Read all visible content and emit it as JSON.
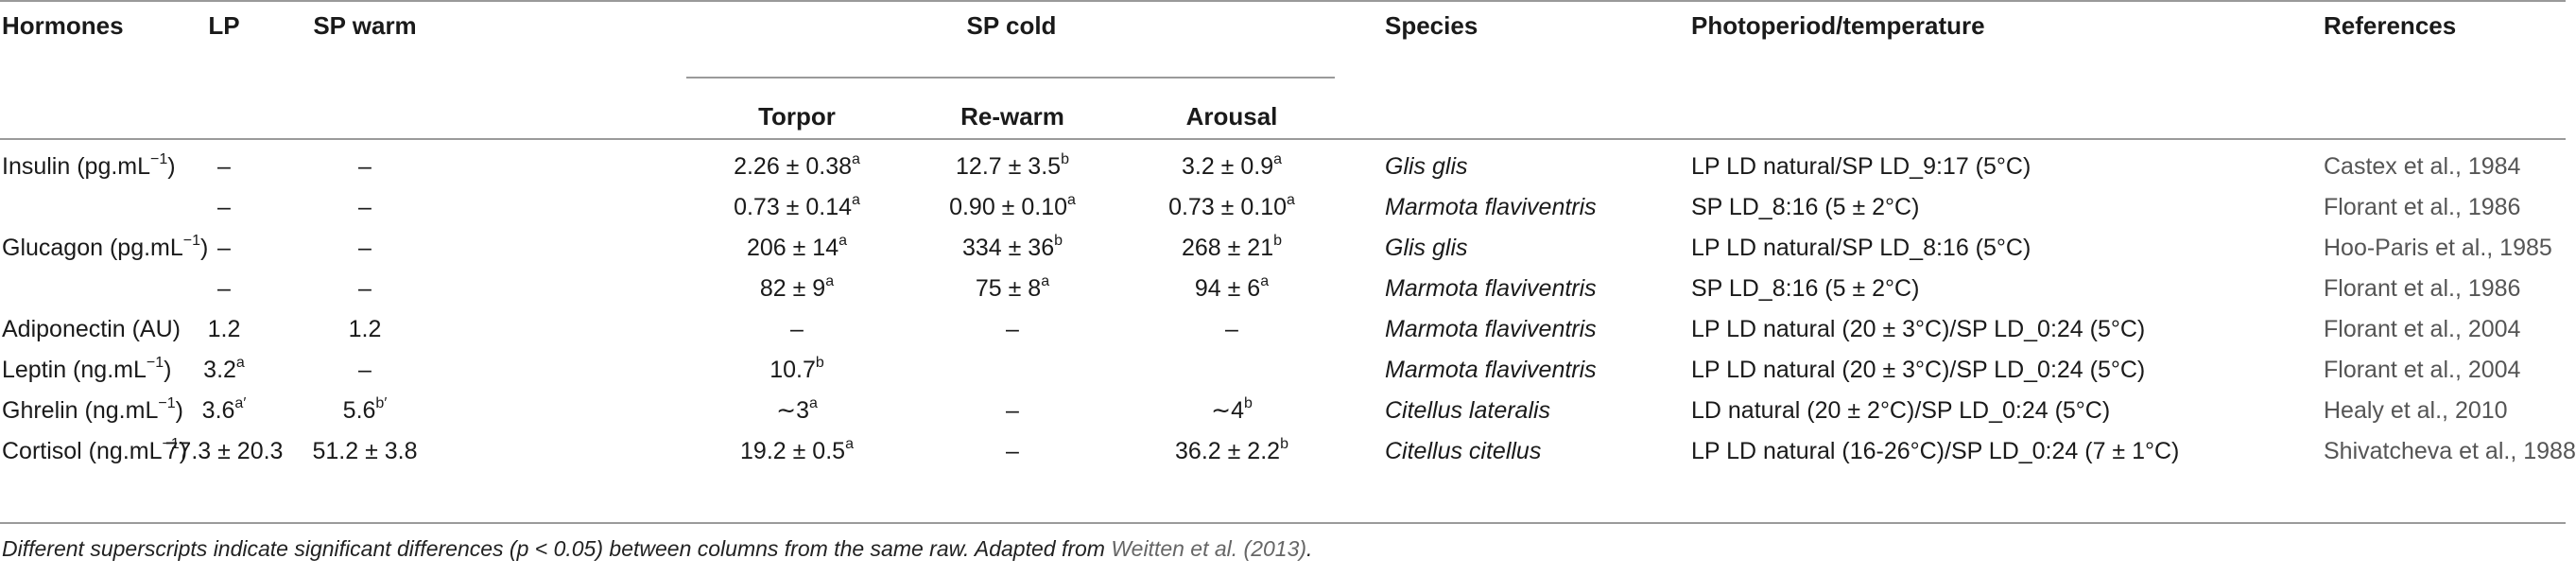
{
  "headers": {
    "hormones": "Hormones",
    "lp": "LP",
    "sp_warm": "SP warm",
    "sp_cold": "SP cold",
    "torpor": "Torpor",
    "rewarm": "Re-warm",
    "arousal": "Arousal",
    "species": "Species",
    "photoperiod": "Photoperiod/temperature",
    "references": "References"
  },
  "rows": [
    {
      "hormone": "Insulin (pg.mL",
      "hormone_sup": "−1",
      "hormone_tail": ")",
      "lp": "–",
      "lp_sup": "",
      "spw": "–",
      "spw_sup": "",
      "torpor": "2.26 ± 0.38",
      "torpor_sup": "a",
      "rewarm": "12.7 ± 3.5",
      "rewarm_sup": "b",
      "arousal": "3.2 ± 0.9",
      "arousal_sup": "a",
      "species": "Glis glis",
      "photo": "LP LD natural/SP LD_9:17 (5°C)",
      "ref": "Castex et al., 1984"
    },
    {
      "hormone": "",
      "hormone_sup": "",
      "hormone_tail": "",
      "lp": "–",
      "lp_sup": "",
      "spw": "–",
      "spw_sup": "",
      "torpor": "0.73 ± 0.14",
      "torpor_sup": "a",
      "rewarm": "0.90 ± 0.10",
      "rewarm_sup": "a",
      "arousal": "0.73 ± 0.10",
      "arousal_sup": "a",
      "species": "Marmota flaviventris",
      "photo": "SP LD_8:16 (5 ± 2°C)",
      "ref": "Florant et al., 1986"
    },
    {
      "hormone": "Glucagon (pg.mL",
      "hormone_sup": "−1",
      "hormone_tail": ")",
      "lp": "–",
      "lp_sup": "",
      "spw": "–",
      "spw_sup": "",
      "torpor": "206 ± 14",
      "torpor_sup": "a",
      "rewarm": "334 ± 36",
      "rewarm_sup": "b",
      "arousal": "268 ± 21",
      "arousal_sup": "b",
      "species": "Glis glis",
      "photo": "LP LD natural/SP LD_8:16 (5°C)",
      "ref": "Hoo-Paris et al., 1985"
    },
    {
      "hormone": "",
      "hormone_sup": "",
      "hormone_tail": "",
      "lp": "–",
      "lp_sup": "",
      "spw": "–",
      "spw_sup": "",
      "torpor": "82 ± 9",
      "torpor_sup": "a",
      "rewarm": "75 ± 8",
      "rewarm_sup": "a",
      "arousal": "94 ± 6",
      "arousal_sup": "a",
      "species": "Marmota flaviventris",
      "photo": "SP LD_8:16 (5 ± 2°C)",
      "ref": "Florant et al., 1986"
    },
    {
      "hormone": "Adiponectin (AU)",
      "hormone_sup": "",
      "hormone_tail": "",
      "lp": "1.2",
      "lp_sup": "",
      "spw": "1.2",
      "spw_sup": "",
      "torpor": "–",
      "torpor_sup": "",
      "rewarm": "–",
      "rewarm_sup": "",
      "arousal": "–",
      "arousal_sup": "",
      "species": "Marmota flaviventris",
      "photo": "LP LD natural (20 ± 3°C)/SP LD_0:24 (5°C)",
      "ref": "Florant et al., 2004"
    },
    {
      "hormone": "Leptin (ng.mL",
      "hormone_sup": "−1",
      "hormone_tail": ")",
      "lp": "3.2",
      "lp_sup": "a",
      "spw": "–",
      "spw_sup": "",
      "torpor": "10.7",
      "torpor_sup": "b",
      "rewarm": "",
      "rewarm_sup": "",
      "arousal": "",
      "arousal_sup": "",
      "species": "Marmota flaviventris",
      "photo": "LP LD natural (20 ± 3°C)/SP LD_0:24 (5°C)",
      "ref": "Florant et al., 2004"
    },
    {
      "hormone": "Ghrelin (ng.mL",
      "hormone_sup": "−1",
      "hormone_tail": ")",
      "lp": "3.6",
      "lp_sup": "a′",
      "spw": "5.6",
      "spw_sup": "b′",
      "torpor": "∼3",
      "torpor_sup": "a",
      "rewarm": "–",
      "rewarm_sup": "",
      "arousal": "∼4",
      "arousal_sup": "b",
      "species": "Citellus lateralis",
      "photo": "LD natural (20 ± 2°C)/SP LD_0:24 (5°C)",
      "ref": "Healy et al., 2010"
    },
    {
      "hormone": "Cortisol (ng.mL",
      "hormone_sup": "−1",
      "hormone_tail": ")",
      "lp": "77.3 ± 20.3",
      "lp_sup": "",
      "spw": "51.2 ± 3.8",
      "spw_sup": "",
      "torpor": "19.2 ± 0.5",
      "torpor_sup": "a",
      "rewarm": "–",
      "rewarm_sup": "",
      "arousal": "36.2 ± 2.2",
      "arousal_sup": "b",
      "species": "Citellus citellus",
      "photo": "LP LD natural (16-26°C)/SP LD_0:24 (7 ± 1°C)",
      "ref": "Shivatcheva et al., 1988"
    }
  ],
  "footnote": {
    "text_before": "Different superscripts indicate significant differences (",
    "p": "p",
    "text_mid": " < 0.05) between columns from the same raw. Adapted from ",
    "link": "Weitten et al. (2013)",
    "text_after": "."
  }
}
